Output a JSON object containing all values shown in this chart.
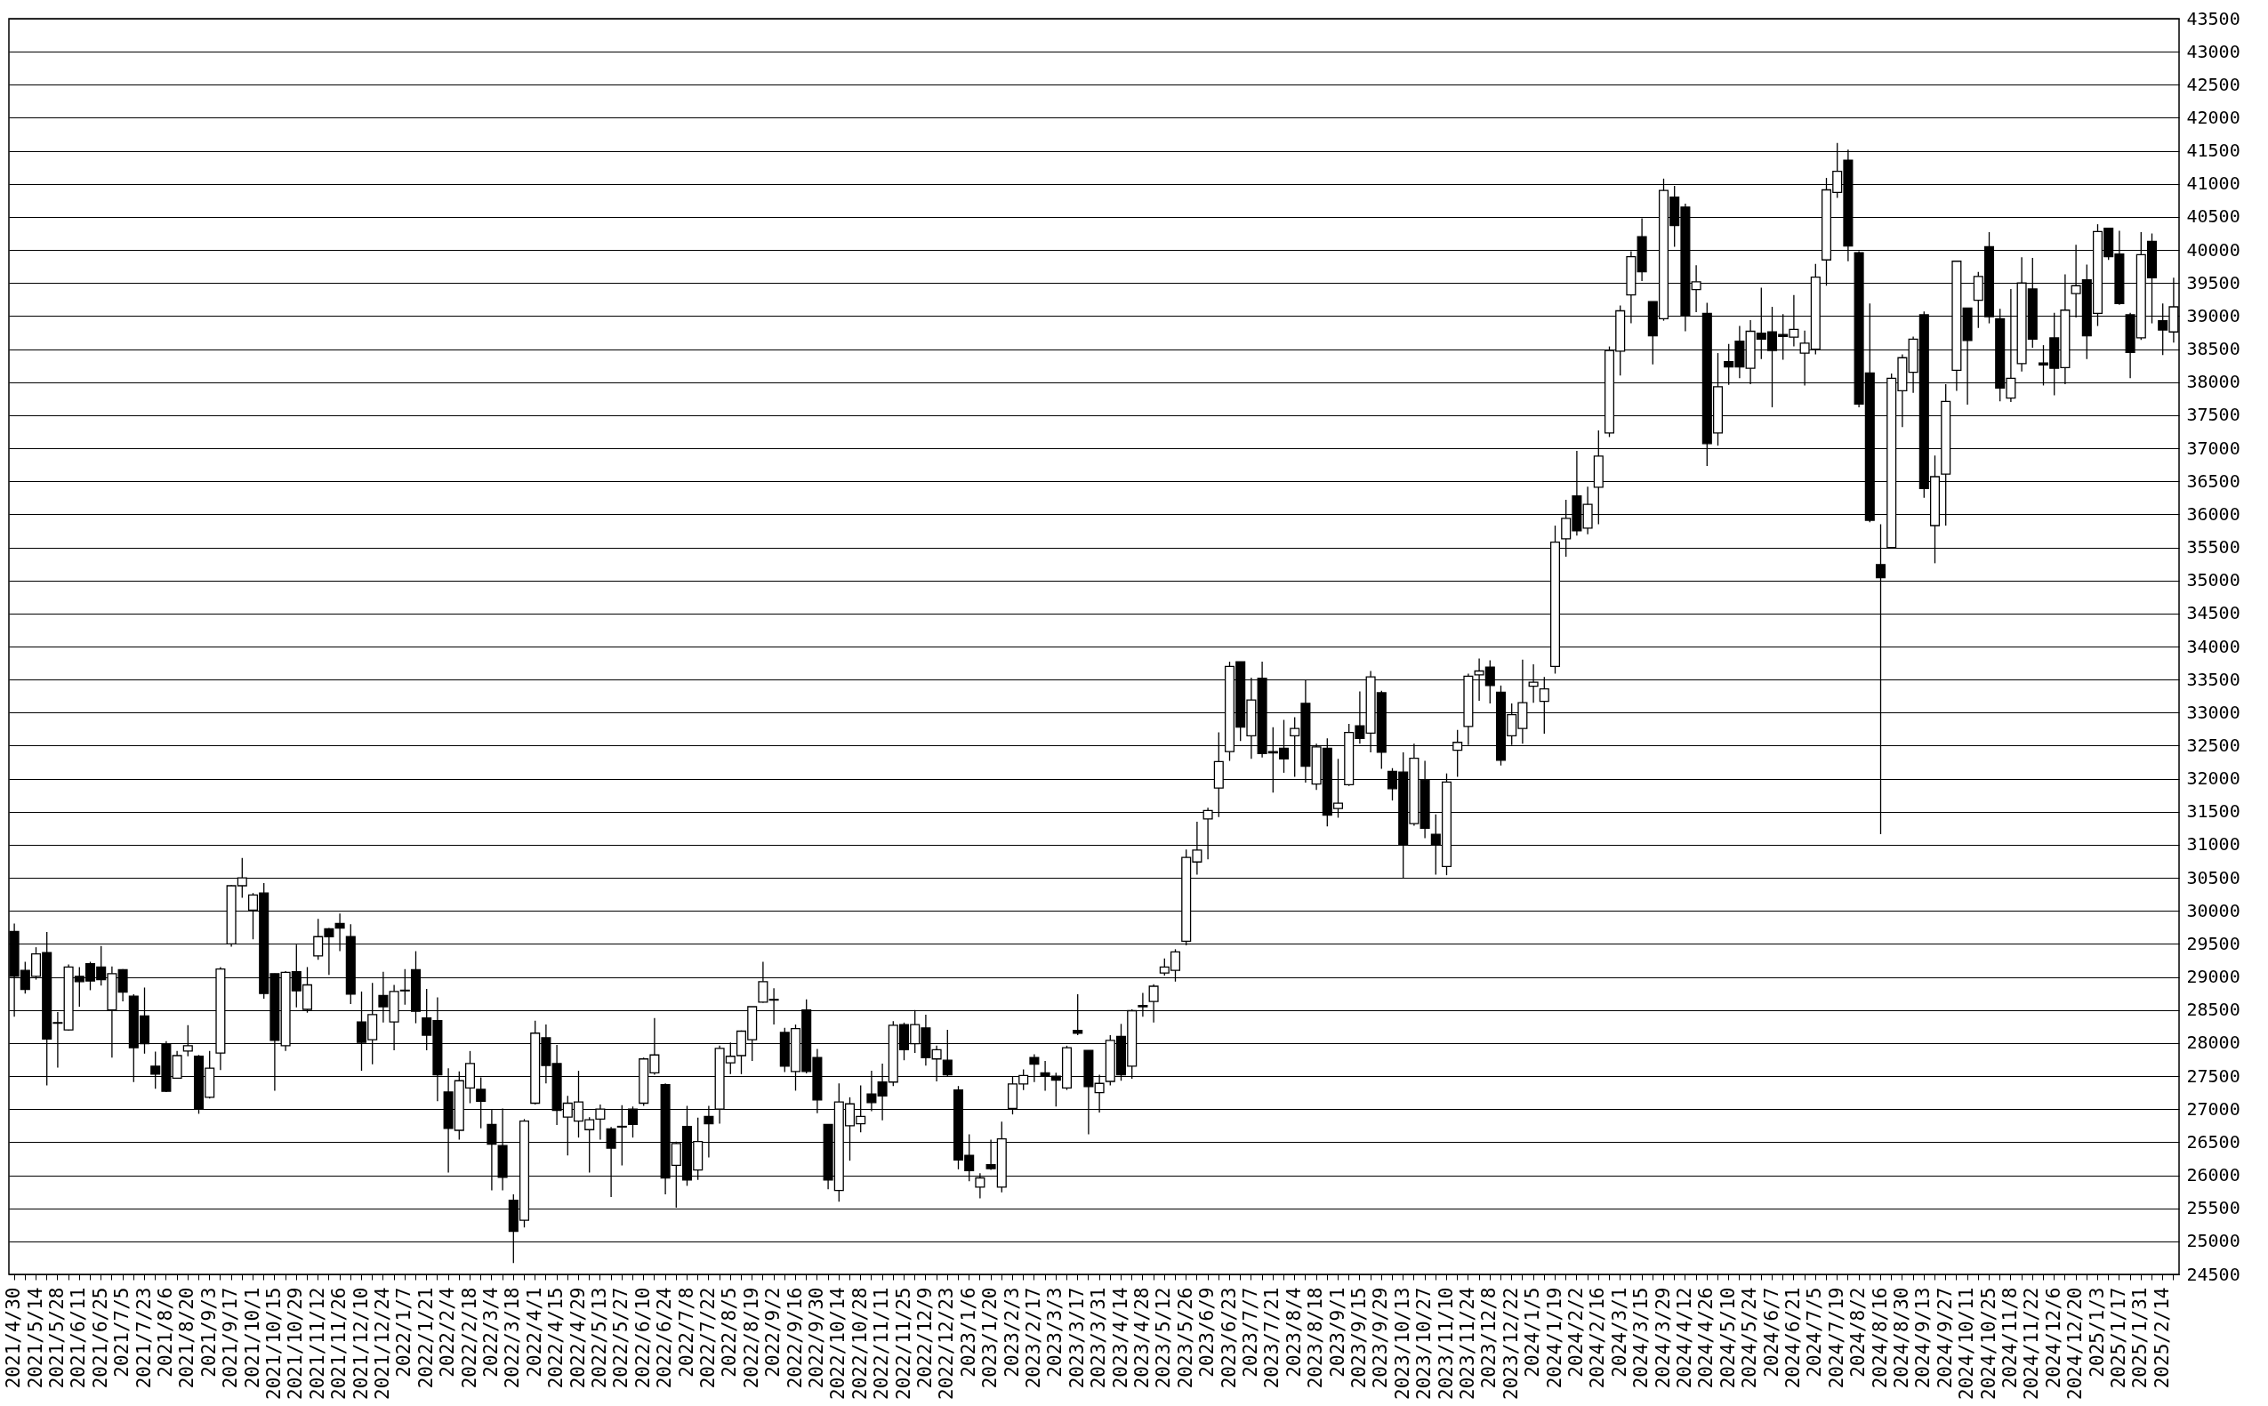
{
  "chart_data": {
    "type": "candlestick",
    "categories": [
      "2021/4/30",
      null,
      "2021/5/14",
      null,
      "2021/5/28",
      null,
      "2021/6/11",
      null,
      "2021/6/25",
      null,
      "2021/7/5",
      null,
      "2021/7/23",
      null,
      "2021/8/6",
      null,
      "2021/8/20",
      null,
      "2021/9/3",
      null,
      "2021/9/17",
      null,
      "2021/10/1",
      null,
      "2021/10/15",
      null,
      "2021/10/29",
      null,
      "2021/11/12",
      null,
      "2021/11/26",
      null,
      "2021/12/10",
      null,
      "2021/12/24",
      null,
      "2022/1/7",
      null,
      "2022/1/21",
      null,
      "2022/2/4",
      null,
      "2022/2/18",
      null,
      "2022/3/4",
      null,
      "2022/3/18",
      null,
      "2022/4/1",
      null,
      "2022/4/15",
      null,
      "2022/4/29",
      null,
      "2022/5/13",
      null,
      "2022/5/27",
      null,
      "2022/6/10",
      null,
      "2022/6/24",
      null,
      "2022/7/8",
      null,
      "2022/7/22",
      null,
      "2022/8/5",
      null,
      "2022/8/19",
      null,
      "2022/9/2",
      null,
      "2022/9/16",
      null,
      "2022/9/30",
      null,
      "2022/10/14",
      null,
      "2022/10/28",
      null,
      "2022/11/11",
      null,
      "2022/11/25",
      null,
      "2022/12/9",
      null,
      "2022/12/23",
      null,
      "2023/1/6",
      null,
      "2023/1/20",
      null,
      "2023/2/3",
      null,
      "2023/2/17",
      null,
      "2023/3/3",
      null,
      "2023/3/17",
      null,
      "2023/3/31",
      null,
      "2023/4/14",
      null,
      "2023/4/28",
      null,
      "2023/5/12",
      null,
      "2023/5/26",
      null,
      "2023/6/9",
      null,
      "2023/6/23",
      null,
      "2023/7/7",
      null,
      "2023/7/21",
      null,
      "2023/8/4",
      null,
      "2023/8/18",
      null,
      "2023/9/1",
      null,
      "2023/9/15",
      null,
      "2023/9/29",
      null,
      "2023/10/13",
      null,
      "2023/10/27",
      null,
      "2023/11/10",
      null,
      "2023/11/24",
      null,
      "2023/12/8",
      null,
      "2023/12/22",
      null,
      "2024/1/5",
      null,
      "2024/1/19",
      null,
      "2024/2/2",
      null,
      "2024/2/16",
      null,
      "2024/3/1",
      null,
      "2024/3/15",
      null,
      "2024/3/29",
      null,
      "2024/4/12",
      null,
      "2024/4/26",
      null,
      "2024/5/10",
      null,
      "2024/5/24",
      null,
      "2024/6/7",
      null,
      "2024/6/21",
      null,
      "2024/7/5",
      null,
      "2024/7/19",
      null,
      "2024/8/2",
      null,
      "2024/8/16",
      null,
      "2024/8/30",
      null,
      "2024/9/13",
      null,
      "2024/9/27",
      null,
      "2024/10/11",
      null,
      "2024/10/25",
      null,
      "2024/11/8",
      null,
      "2024/11/22",
      null,
      "2024/12/6",
      null,
      "2024/12/20",
      null,
      "2025/1/3",
      null,
      "2025/1/17",
      null,
      "2025/1/31",
      null,
      "2025/2/14",
      null
    ],
    "ohlc": [
      [
        29690,
        29810,
        28400,
        29010
      ],
      [
        29100,
        29230,
        28750,
        28810
      ],
      [
        29010,
        29450,
        28960,
        29350
      ],
      [
        29370,
        29680,
        27360,
        28060
      ],
      [
        28310,
        28470,
        27630,
        28300
      ],
      [
        28200,
        29190,
        28190,
        29150
      ],
      [
        29010,
        29150,
        28550,
        28930
      ],
      [
        29200,
        29230,
        28800,
        28940
      ],
      [
        29150,
        29470,
        28870,
        28960
      ],
      [
        28500,
        29160,
        27780,
        29050
      ],
      [
        29110,
        29120,
        28630,
        28770
      ],
      [
        28710,
        28740,
        27410,
        27930
      ],
      [
        28410,
        28840,
        27840,
        27990
      ],
      [
        27650,
        27870,
        27310,
        27530
      ],
      [
        27990,
        28030,
        27260,
        27270
      ],
      [
        27470,
        27880,
        27460,
        27810
      ],
      [
        27880,
        28270,
        27800,
        27960
      ],
      [
        27800,
        27820,
        26930,
        27000
      ],
      [
        27180,
        27880,
        27160,
        27620
      ],
      [
        27850,
        29150,
        27590,
        29120
      ],
      [
        29500,
        30390,
        29460,
        30380
      ],
      [
        30380,
        30800,
        30200,
        30500
      ],
      [
        30010,
        30270,
        29570,
        30240
      ],
      [
        30270,
        30420,
        28670,
        28750
      ],
      [
        29050,
        29050,
        27280,
        28040
      ],
      [
        27960,
        29090,
        27880,
        29070
      ],
      [
        29080,
        29490,
        28540,
        28790
      ],
      [
        28510,
        29150,
        28460,
        28880
      ],
      [
        29320,
        29880,
        29260,
        29610
      ],
      [
        29730,
        29740,
        29030,
        29610
      ],
      [
        29810,
        29960,
        29390,
        29740
      ],
      [
        29610,
        29800,
        28590,
        28740
      ],
      [
        28320,
        28780,
        27580,
        28010
      ],
      [
        28050,
        28910,
        27680,
        28430
      ],
      [
        28720,
        29080,
        28310,
        28550
      ],
      [
        28320,
        28880,
        27890,
        28780
      ],
      [
        28790,
        29120,
        28580,
        28800
      ],
      [
        29110,
        29390,
        28300,
        28480
      ],
      [
        28380,
        28820,
        27890,
        28120
      ],
      [
        28340,
        28690,
        27120,
        27520
      ],
      [
        27260,
        27620,
        26040,
        26710
      ],
      [
        26680,
        27570,
        26540,
        27430
      ],
      [
        27320,
        27880,
        27090,
        27690
      ],
      [
        27300,
        27480,
        26710,
        27120
      ],
      [
        26770,
        27000,
        25770,
        26470
      ],
      [
        26450,
        27010,
        25770,
        25970
      ],
      [
        25620,
        25710,
        24670,
        25150
      ],
      [
        25320,
        26850,
        25210,
        26820
      ],
      [
        27090,
        28340,
        27070,
        28150
      ],
      [
        28080,
        28280,
        27390,
        27660
      ],
      [
        27690,
        27970,
        26760,
        26980
      ],
      [
        26880,
        27200,
        26300,
        27090
      ],
      [
        26820,
        27580,
        26570,
        27110
      ],
      [
        26690,
        26880,
        26040,
        26840
      ],
      [
        26850,
        27070,
        26540,
        27000
      ],
      [
        26700,
        26730,
        25670,
        26410
      ],
      [
        26740,
        27060,
        26150,
        26730
      ],
      [
        27000,
        27040,
        26570,
        26770
      ],
      [
        27090,
        27780,
        27050,
        27760
      ],
      [
        27550,
        28380,
        27520,
        27820
      ],
      [
        27370,
        27390,
        25710,
        25960
      ],
      [
        26150,
        26510,
        25510,
        26480
      ],
      [
        26740,
        27050,
        25840,
        25930
      ],
      [
        26080,
        26870,
        25930,
        26510
      ],
      [
        26890,
        27050,
        26270,
        26780
      ],
      [
        27000,
        27960,
        26780,
        27920
      ],
      [
        27700,
        28010,
        27530,
        27800
      ],
      [
        27810,
        28190,
        27530,
        28180
      ],
      [
        28050,
        28550,
        27730,
        28550
      ],
      [
        28620,
        29230,
        28610,
        28930
      ],
      [
        28660,
        28830,
        28280,
        28650
      ],
      [
        28160,
        28230,
        27560,
        27650
      ],
      [
        27570,
        28280,
        27280,
        28220
      ],
      [
        28500,
        28660,
        27540,
        27570
      ],
      [
        27780,
        27910,
        26940,
        27140
      ],
      [
        26770,
        26770,
        25790,
        25930
      ],
      [
        25770,
        27390,
        25600,
        27110
      ],
      [
        26750,
        27180,
        26220,
        27080
      ],
      [
        26780,
        27360,
        26650,
        26890
      ],
      [
        27230,
        27580,
        26970,
        27100
      ],
      [
        27410,
        27690,
        26830,
        27200
      ],
      [
        27410,
        28330,
        27350,
        28270
      ],
      [
        28280,
        28310,
        27740,
        27900
      ],
      [
        27990,
        28500,
        27850,
        28280
      ],
      [
        28230,
        28430,
        27660,
        27780
      ],
      [
        27760,
        27960,
        27420,
        27900
      ],
      [
        27740,
        28200,
        27490,
        27520
      ],
      [
        27290,
        27350,
        26090,
        26230
      ],
      [
        26300,
        26620,
        25910,
        26070
      ],
      [
        25820,
        26030,
        25650,
        25960
      ],
      [
        26160,
        26540,
        26080,
        26100
      ],
      [
        25820,
        26810,
        25740,
        26550
      ],
      [
        27010,
        27500,
        26920,
        27380
      ],
      [
        27380,
        27600,
        27290,
        27510
      ],
      [
        27780,
        27830,
        27410,
        27680
      ],
      [
        27550,
        27730,
        27280,
        27500
      ],
      [
        27500,
        27550,
        27040,
        27440
      ],
      [
        27320,
        27960,
        27290,
        27930
      ],
      [
        28190,
        28740,
        28120,
        28150
      ],
      [
        27890,
        27890,
        26620,
        27340
      ],
      [
        27250,
        27520,
        26950,
        27390
      ],
      [
        27420,
        28120,
        27360,
        28040
      ],
      [
        28100,
        28290,
        27430,
        27520
      ],
      [
        27650,
        28510,
        27460,
        28490
      ],
      [
        28570,
        28760,
        28400,
        28550
      ],
      [
        28630,
        28890,
        28310,
        28860
      ],
      [
        29060,
        29280,
        29020,
        29150
      ],
      [
        29100,
        29420,
        28930,
        29380
      ],
      [
        29540,
        30930,
        29480,
        30810
      ],
      [
        30740,
        31350,
        30550,
        30920
      ],
      [
        31390,
        31560,
        30780,
        31520
      ],
      [
        31860,
        32700,
        31420,
        32260
      ],
      [
        32410,
        33770,
        32270,
        33700
      ],
      [
        33770,
        33770,
        32570,
        32780
      ],
      [
        32650,
        33530,
        32300,
        33190
      ],
      [
        33520,
        33770,
        32320,
        32380
      ],
      [
        32410,
        32780,
        31790,
        32390
      ],
      [
        32460,
        32890,
        32090,
        32300
      ],
      [
        32650,
        32930,
        32030,
        32760
      ],
      [
        33140,
        33490,
        31940,
        32190
      ],
      [
        31920,
        32530,
        31830,
        32480
      ],
      [
        32460,
        32610,
        31280,
        31450
      ],
      [
        31550,
        32300,
        31410,
        31630
      ],
      [
        31910,
        32830,
        31890,
        32700
      ],
      [
        32800,
        33320,
        32530,
        32610
      ],
      [
        32690,
        33630,
        32400,
        33540
      ],
      [
        33300,
        33330,
        32150,
        32400
      ],
      [
        32110,
        32160,
        31670,
        31850
      ],
      [
        32100,
        32400,
        30500,
        31000
      ],
      [
        31320,
        32530,
        31290,
        32310
      ],
      [
        31980,
        32270,
        31100,
        31250
      ],
      [
        31160,
        31460,
        30550,
        31000
      ],
      [
        30670,
        32080,
        30540,
        31950
      ],
      [
        32430,
        32740,
        32030,
        32550
      ],
      [
        32790,
        33590,
        32510,
        33550
      ],
      [
        33570,
        33820,
        33180,
        33630
      ],
      [
        33690,
        33790,
        33140,
        33410
      ],
      [
        33310,
        33410,
        32200,
        32280
      ],
      [
        32650,
        33140,
        32510,
        32970
      ],
      [
        32760,
        33800,
        32530,
        33150
      ],
      [
        33400,
        33730,
        33150,
        33460
      ],
      [
        33170,
        33540,
        32680,
        33360
      ],
      [
        33700,
        35830,
        33590,
        35580
      ],
      [
        35630,
        36220,
        35360,
        35940
      ],
      [
        36280,
        36960,
        35680,
        35750
      ],
      [
        35790,
        36420,
        35700,
        36150
      ],
      [
        36410,
        37270,
        35850,
        36880
      ],
      [
        37230,
        38540,
        37170,
        38480
      ],
      [
        38470,
        39160,
        38100,
        39080
      ],
      [
        39320,
        39980,
        38890,
        39900
      ],
      [
        40200,
        40480,
        39530,
        39670
      ],
      [
        39220,
        39220,
        38270,
        38700
      ],
      [
        38960,
        41080,
        38930,
        40900
      ],
      [
        40800,
        40970,
        40050,
        40370
      ],
      [
        40650,
        40700,
        38770,
        39000
      ],
      [
        39400,
        39770,
        39060,
        39520
      ],
      [
        39040,
        39200,
        36730,
        37070
      ],
      [
        37230,
        38440,
        37040,
        37930
      ],
      [
        38310,
        38580,
        37960,
        38230
      ],
      [
        38620,
        38850,
        38060,
        38230
      ],
      [
        38210,
        38940,
        37970,
        38770
      ],
      [
        38740,
        39430,
        38350,
        38650
      ],
      [
        38760,
        39140,
        37620,
        38480
      ],
      [
        38720,
        39030,
        38340,
        38690
      ],
      [
        38680,
        39320,
        38540,
        38800
      ],
      [
        38440,
        38780,
        37950,
        38590
      ],
      [
        38500,
        39790,
        38420,
        39590
      ],
      [
        39850,
        41090,
        39460,
        40910
      ],
      [
        40870,
        41620,
        40790,
        41190
      ],
      [
        41360,
        41520,
        39830,
        40060
      ],
      [
        39960,
        39980,
        37620,
        37670
      ],
      [
        38140,
        39190,
        35880,
        35910
      ],
      [
        35240,
        35850,
        31160,
        35040
      ],
      [
        35500,
        38130,
        35480,
        38060
      ],
      [
        37870,
        38420,
        37320,
        38370
      ],
      [
        38150,
        38690,
        37840,
        38650
      ],
      [
        39020,
        39070,
        36250,
        36390
      ],
      [
        35830,
        36890,
        35260,
        36570
      ],
      [
        36610,
        37970,
        35830,
        37710
      ],
      [
        38180,
        39830,
        37870,
        39830
      ],
      [
        39120,
        39120,
        37660,
        38630
      ],
      [
        39240,
        39670,
        38820,
        39600
      ],
      [
        40050,
        40270,
        38890,
        38990
      ],
      [
        38960,
        39110,
        37710,
        37910
      ],
      [
        37760,
        39410,
        37700,
        38060
      ],
      [
        38280,
        39890,
        38160,
        39500
      ],
      [
        39410,
        39880,
        38520,
        38650
      ],
      [
        38290,
        38560,
        37950,
        38260
      ],
      [
        38670,
        39050,
        37800,
        38210
      ],
      [
        38220,
        39630,
        37970,
        39090
      ],
      [
        39340,
        40080,
        38980,
        39460
      ],
      [
        39550,
        39780,
        38350,
        38700
      ],
      [
        39040,
        40390,
        38850,
        40280
      ],
      [
        40330,
        40330,
        39850,
        39900
      ],
      [
        39940,
        40290,
        39170,
        39190
      ],
      [
        39020,
        39050,
        38060,
        38450
      ],
      [
        38670,
        40270,
        38640,
        39930
      ],
      [
        40130,
        40250,
        38890,
        39580
      ],
      [
        38930,
        39190,
        38410,
        38790
      ],
      [
        38760,
        39580,
        38600,
        39140
      ]
    ],
    "ylim": [
      24500,
      43500
    ],
    "yticks": [
      24500,
      25000,
      25500,
      26000,
      26500,
      27000,
      27500,
      28000,
      28500,
      29000,
      29500,
      30000,
      30500,
      31000,
      31500,
      32000,
      32500,
      33000,
      33500,
      34000,
      34500,
      35000,
      35500,
      36000,
      36500,
      37000,
      37500,
      38000,
      38500,
      39000,
      39500,
      40000,
      40500,
      41000,
      41500,
      42000,
      42500,
      43000,
      43500
    ],
    "grid": "y"
  }
}
